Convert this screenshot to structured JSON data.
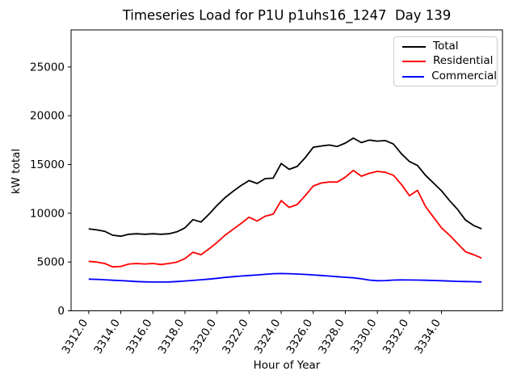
{
  "chart_data": {
    "type": "line",
    "title": "Timeseries Load for P1U p1uhs16_1247  Day 139",
    "xlabel": "Hour of Year",
    "ylabel": "kW total",
    "grid": false,
    "legend_position": "upper right",
    "xlim": [
      3310.9,
      3337.8
    ],
    "ylim": [
      0,
      28800
    ],
    "xticks": {
      "values": [
        3312,
        3314,
        3316,
        3318,
        3320,
        3322,
        3324,
        3326,
        3328,
        3330,
        3332,
        3334
      ],
      "labels": [
        "3312.0",
        "3314.0",
        "3316.0",
        "3318.0",
        "3320.0",
        "3322.0",
        "3324.0",
        "3326.0",
        "3328.0",
        "3330.0",
        "3332.0",
        "3334.0"
      ]
    },
    "yticks": {
      "values": [
        0,
        5000,
        10000,
        15000,
        20000,
        25000
      ],
      "labels": [
        "0",
        "5000",
        "10000",
        "15000",
        "20000",
        "25000"
      ]
    },
    "x": [
      3312.0,
      3312.5,
      3313.0,
      3313.5,
      3314.0,
      3314.5,
      3315.0,
      3315.5,
      3316.0,
      3316.5,
      3317.0,
      3317.5,
      3318.0,
      3318.5,
      3319.0,
      3319.5,
      3320.0,
      3320.5,
      3321.0,
      3321.5,
      3322.0,
      3322.5,
      3323.0,
      3323.5,
      3324.0,
      3324.5,
      3325.0,
      3325.5,
      3326.0,
      3326.5,
      3327.0,
      3327.5,
      3328.0,
      3328.5,
      3329.0,
      3329.5,
      3330.0,
      3330.5,
      3331.0,
      3331.5,
      3332.0,
      3332.5,
      3333.0,
      3333.5,
      3334.0,
      3334.5,
      3335.0,
      3335.5,
      3336.0,
      3336.5
    ],
    "series": [
      {
        "name": "Total",
        "color": "#000000",
        "values": [
          8400,
          8300,
          8150,
          7750,
          7650,
          7850,
          7900,
          7850,
          7900,
          7850,
          7900,
          8100,
          8500,
          9350,
          9100,
          9900,
          10800,
          11600,
          12250,
          12850,
          13350,
          13050,
          13550,
          13600,
          15100,
          14500,
          14800,
          15700,
          16770,
          16900,
          17000,
          16850,
          17200,
          17700,
          17250,
          17500,
          17400,
          17450,
          17100,
          16100,
          15300,
          14900,
          13900,
          13100,
          12300,
          11300,
          10400,
          9300,
          8750,
          8400
        ],
        "legend_label": "Total"
      },
      {
        "name": "Residential",
        "color": "#ff0000",
        "values": [
          5070,
          5000,
          4850,
          4500,
          4550,
          4800,
          4850,
          4800,
          4850,
          4750,
          4850,
          5000,
          5350,
          6000,
          5750,
          6350,
          7000,
          7750,
          8350,
          8950,
          9600,
          9200,
          9700,
          9900,
          11300,
          10600,
          10900,
          11800,
          12800,
          13100,
          13200,
          13200,
          13700,
          14400,
          13800,
          14100,
          14300,
          14200,
          13900,
          12950,
          11800,
          12350,
          10700,
          9600,
          8500,
          7750,
          6900,
          6050,
          5750,
          5400
        ],
        "legend_label": "Residential"
      },
      {
        "name": "Commercial",
        "color": "#0000ff",
        "values": [
          3250,
          3220,
          3180,
          3130,
          3100,
          3050,
          3000,
          2970,
          2950,
          2950,
          2960,
          3000,
          3060,
          3120,
          3180,
          3250,
          3330,
          3420,
          3500,
          3560,
          3620,
          3680,
          3740,
          3800,
          3820,
          3800,
          3770,
          3730,
          3680,
          3620,
          3560,
          3500,
          3440,
          3380,
          3280,
          3150,
          3080,
          3100,
          3150,
          3170,
          3160,
          3150,
          3130,
          3110,
          3080,
          3050,
          3020,
          3000,
          2980,
          2960
        ],
        "legend_label": "Commercial"
      }
    ]
  }
}
